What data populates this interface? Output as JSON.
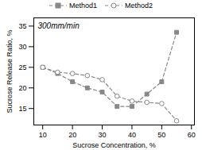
{
  "chart_data": {
    "type": "line",
    "xlabel": "Sucrose Concentration, %",
    "ylabel": "Sucrose Release Ratio, %",
    "annotation": "300mm/min",
    "x": [
      10,
      15,
      20,
      25,
      30,
      35,
      40,
      45,
      50,
      55
    ],
    "series": [
      {
        "name": "Method1",
        "color": "#888888",
        "marker": "square",
        "line_style": "dashed",
        "values": [
          25.0,
          23.5,
          21.5,
          20.0,
          19.0,
          15.5,
          15.5,
          18.5,
          21.5,
          33.5
        ]
      },
      {
        "name": "Method2",
        "color": "#888888",
        "marker": "circle-open",
        "line_style": "dashed",
        "values": [
          25.0,
          23.8,
          23.5,
          23.0,
          22.0,
          18.0,
          16.8,
          16.5,
          16.2,
          12.0
        ]
      }
    ],
    "xlim": [
      7,
      61
    ],
    "ylim": [
      11,
      37
    ],
    "xticks": [
      10,
      20,
      30,
      40,
      50,
      60
    ],
    "yticks": [
      15,
      20,
      25,
      30,
      35
    ],
    "grid": false,
    "legend": "top"
  }
}
